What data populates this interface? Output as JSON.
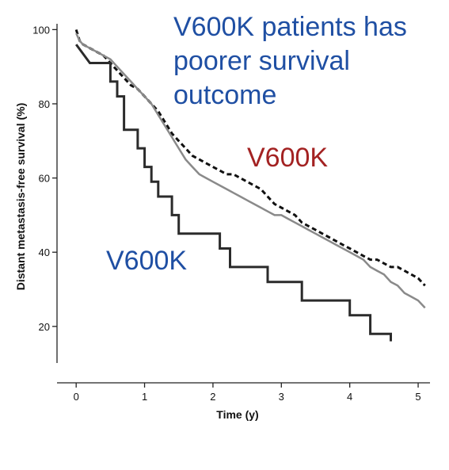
{
  "chart_data": {
    "type": "line",
    "title": "",
    "xlabel": "Time (y)",
    "ylabel": "Distant metastasis-free survival (%)",
    "xlim": [
      -0.28,
      5.15
    ],
    "ylim": [
      8,
      102
    ],
    "x_ticks": [
      0,
      1,
      2,
      3,
      4,
      5
    ],
    "y_ticks": [
      20,
      40,
      60,
      80,
      100
    ],
    "grid": false,
    "legend": "none",
    "annotations": [
      {
        "id": "headline",
        "lines": [
          "V600K patients has",
          "poorer survival",
          "outcome"
        ],
        "color": "#1f4fa3"
      },
      {
        "id": "dashed-label",
        "lines": [
          "V600K"
        ],
        "color": "#a32222"
      },
      {
        "id": "black-label",
        "lines": [
          "V600K"
        ],
        "color": "#1f4fa3"
      }
    ],
    "series": [
      {
        "style": "dashed",
        "color": "#111111",
        "step": false,
        "points": [
          [
            0,
            100
          ],
          [
            0.05,
            97
          ],
          [
            0.1,
            96
          ],
          [
            0.2,
            95
          ],
          [
            0.3,
            94
          ],
          [
            0.4,
            93
          ],
          [
            0.5,
            91
          ],
          [
            0.6,
            89
          ],
          [
            0.7,
            87
          ],
          [
            0.8,
            85
          ],
          [
            0.9,
            84
          ],
          [
            1.0,
            82
          ],
          [
            1.1,
            80
          ],
          [
            1.2,
            78
          ],
          [
            1.3,
            75
          ],
          [
            1.4,
            72
          ],
          [
            1.5,
            70
          ],
          [
            1.6,
            68
          ],
          [
            1.7,
            66
          ],
          [
            1.8,
            65
          ],
          [
            1.9,
            64
          ],
          [
            2.0,
            63
          ],
          [
            2.1,
            62
          ],
          [
            2.2,
            61
          ],
          [
            2.3,
            61
          ],
          [
            2.4,
            60
          ],
          [
            2.5,
            59
          ],
          [
            2.6,
            58
          ],
          [
            2.7,
            57
          ],
          [
            2.8,
            55
          ],
          [
            2.9,
            53
          ],
          [
            3.0,
            52
          ],
          [
            3.1,
            51
          ],
          [
            3.2,
            50
          ],
          [
            3.3,
            48
          ],
          [
            3.4,
            47
          ],
          [
            3.5,
            46
          ],
          [
            3.6,
            45
          ],
          [
            3.7,
            44
          ],
          [
            3.8,
            43
          ],
          [
            3.9,
            42
          ],
          [
            4.0,
            41
          ],
          [
            4.1,
            40
          ],
          [
            4.2,
            39
          ],
          [
            4.3,
            38
          ],
          [
            4.4,
            38
          ],
          [
            4.5,
            37
          ],
          [
            4.6,
            36
          ],
          [
            4.7,
            36
          ],
          [
            4.8,
            35
          ],
          [
            4.9,
            34
          ],
          [
            5.0,
            33
          ],
          [
            5.1,
            31
          ]
        ]
      },
      {
        "style": "solid",
        "color": "#8a8a8a",
        "step": false,
        "points": [
          [
            0,
            99
          ],
          [
            0.05,
            97
          ],
          [
            0.1,
            96
          ],
          [
            0.2,
            95
          ],
          [
            0.3,
            94
          ],
          [
            0.4,
            93
          ],
          [
            0.5,
            92
          ],
          [
            0.6,
            90
          ],
          [
            0.7,
            88
          ],
          [
            0.8,
            86
          ],
          [
            0.9,
            84
          ],
          [
            1.0,
            82
          ],
          [
            1.1,
            80
          ],
          [
            1.2,
            77
          ],
          [
            1.3,
            74
          ],
          [
            1.4,
            71
          ],
          [
            1.5,
            68
          ],
          [
            1.6,
            65
          ],
          [
            1.7,
            63
          ],
          [
            1.8,
            61
          ],
          [
            1.9,
            60
          ],
          [
            2.0,
            59
          ],
          [
            2.1,
            58
          ],
          [
            2.2,
            57
          ],
          [
            2.3,
            56
          ],
          [
            2.4,
            55
          ],
          [
            2.5,
            54
          ],
          [
            2.6,
            53
          ],
          [
            2.7,
            52
          ],
          [
            2.8,
            51
          ],
          [
            2.9,
            50
          ],
          [
            3.0,
            50
          ],
          [
            3.1,
            49
          ],
          [
            3.2,
            48
          ],
          [
            3.3,
            47
          ],
          [
            3.4,
            46
          ],
          [
            3.5,
            45
          ],
          [
            3.6,
            44
          ],
          [
            3.7,
            43
          ],
          [
            3.8,
            42
          ],
          [
            3.9,
            41
          ],
          [
            4.0,
            40
          ],
          [
            4.1,
            39
          ],
          [
            4.2,
            38
          ],
          [
            4.3,
            36
          ],
          [
            4.4,
            35
          ],
          [
            4.5,
            34
          ],
          [
            4.6,
            32
          ],
          [
            4.7,
            31
          ],
          [
            4.8,
            29
          ],
          [
            4.9,
            28
          ],
          [
            5.0,
            27
          ],
          [
            5.1,
            25
          ]
        ]
      },
      {
        "style": "solid",
        "color": "#2b2b2b",
        "step": true,
        "points": [
          [
            0,
            96
          ],
          [
            0.2,
            91
          ],
          [
            0.5,
            91
          ],
          [
            0.5,
            86
          ],
          [
            0.6,
            86
          ],
          [
            0.6,
            82
          ],
          [
            0.7,
            82
          ],
          [
            0.7,
            73
          ],
          [
            0.9,
            73
          ],
          [
            0.9,
            68
          ],
          [
            1.0,
            68
          ],
          [
            1.0,
            63
          ],
          [
            1.1,
            63
          ],
          [
            1.1,
            59
          ],
          [
            1.2,
            59
          ],
          [
            1.2,
            55
          ],
          [
            1.4,
            55
          ],
          [
            1.4,
            50
          ],
          [
            1.5,
            50
          ],
          [
            1.5,
            45
          ],
          [
            2.1,
            45
          ],
          [
            2.1,
            41
          ],
          [
            2.25,
            41
          ],
          [
            2.25,
            36
          ],
          [
            2.8,
            36
          ],
          [
            2.8,
            32
          ],
          [
            3.3,
            32
          ],
          [
            3.3,
            27
          ],
          [
            4.0,
            27
          ],
          [
            4.0,
            23
          ],
          [
            4.3,
            23
          ],
          [
            4.3,
            18
          ],
          [
            4.6,
            18
          ],
          [
            4.6,
            16
          ]
        ]
      }
    ]
  }
}
